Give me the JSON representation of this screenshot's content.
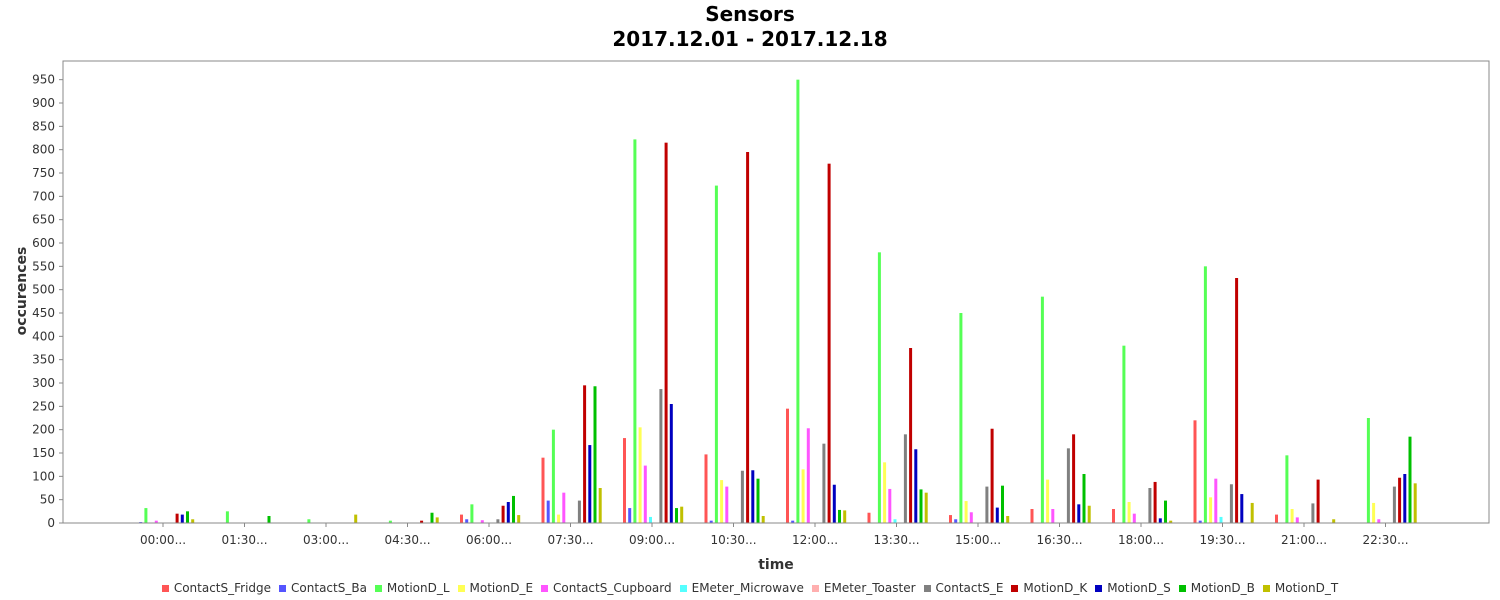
{
  "chart_data": {
    "type": "bar",
    "title": "Sensors",
    "subtitle": "2017.12.01 - 2017.12.18",
    "xlabel": "time",
    "ylabel": "occurences",
    "ylim": [
      0,
      1000
    ],
    "yticks": [
      0,
      50,
      100,
      150,
      200,
      250,
      300,
      350,
      400,
      450,
      500,
      550,
      600,
      650,
      700,
      750,
      800,
      850,
      900,
      950
    ],
    "grid": false,
    "legend": "bottom",
    "categories": [
      "00:00...",
      "01:30...",
      "03:00...",
      "04:30...",
      "06:00...",
      "07:30...",
      "09:00...",
      "10:30...",
      "12:00...",
      "13:30...",
      "15:00...",
      "16:30...",
      "18:00...",
      "19:30...",
      "21:00...",
      "22:30..."
    ],
    "series": [
      {
        "name": "ContactS_Fridge",
        "color": "#ff5555",
        "values": [
          0,
          0,
          0,
          0,
          18,
          140,
          182,
          147,
          245,
          22,
          17,
          30,
          30,
          220,
          18,
          0
        ]
      },
      {
        "name": "ContactS_Ba",
        "color": "#5555ff",
        "values": [
          2,
          0,
          0,
          0,
          8,
          48,
          32,
          5,
          5,
          0,
          8,
          0,
          0,
          5,
          0,
          0
        ]
      },
      {
        "name": "MotionD_L",
        "color": "#55ff55",
        "values": [
          32,
          25,
          8,
          5,
          40,
          200,
          822,
          723,
          950,
          580,
          450,
          485,
          380,
          550,
          145,
          225
        ]
      },
      {
        "name": "MotionD_E",
        "color": "#ffff55",
        "values": [
          0,
          0,
          0,
          0,
          0,
          18,
          205,
          92,
          115,
          130,
          47,
          93,
          45,
          55,
          30,
          43
        ]
      },
      {
        "name": "ContactS_Cupboard",
        "color": "#ff55ff",
        "values": [
          5,
          0,
          0,
          0,
          6,
          65,
          123,
          78,
          203,
          73,
          23,
          30,
          20,
          95,
          12,
          8
        ]
      },
      {
        "name": "EMeter_Microwave",
        "color": "#55ffff",
        "values": [
          0,
          0,
          0,
          0,
          0,
          0,
          13,
          0,
          0,
          8,
          0,
          0,
          0,
          13,
          0,
          0
        ]
      },
      {
        "name": "EMeter_Toaster",
        "color": "#ffafaf",
        "values": [
          0,
          0,
          0,
          0,
          0,
          0,
          0,
          0,
          0,
          0,
          0,
          0,
          0,
          0,
          0,
          0
        ]
      },
      {
        "name": "ContactS_E",
        "color": "#808080",
        "values": [
          0,
          0,
          0,
          0,
          8,
          48,
          287,
          112,
          170,
          190,
          78,
          160,
          75,
          83,
          42,
          78
        ]
      },
      {
        "name": "MotionD_K",
        "color": "#c00000",
        "values": [
          20,
          0,
          0,
          5,
          37,
          295,
          815,
          795,
          770,
          375,
          202,
          190,
          88,
          525,
          93,
          97
        ]
      },
      {
        "name": "MotionD_S",
        "color": "#0000c0",
        "values": [
          18,
          0,
          0,
          0,
          45,
          167,
          255,
          113,
          82,
          158,
          33,
          40,
          10,
          62,
          0,
          105
        ]
      },
      {
        "name": "MotionD_B",
        "color": "#00c000",
        "values": [
          25,
          15,
          0,
          22,
          58,
          293,
          32,
          95,
          28,
          72,
          80,
          105,
          48,
          0,
          0,
          185
        ]
      },
      {
        "name": "MotionD_T",
        "color": "#c0c000",
        "values": [
          8,
          0,
          18,
          12,
          17,
          75,
          35,
          15,
          27,
          65,
          15,
          37,
          5,
          43,
          8,
          85
        ]
      }
    ]
  }
}
